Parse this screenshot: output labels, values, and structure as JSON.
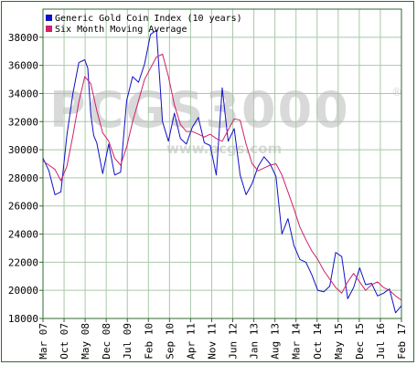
{
  "watermark": {
    "brand": "PCGS3000",
    "url": "www.pcgs.com",
    "registered": "®"
  },
  "colors": {
    "index_line": "#1010c8",
    "average_line": "#d0206a",
    "axis": "#2f6b2f",
    "grid": "#a8c8a8"
  },
  "chart_data": {
    "type": "line",
    "title": "",
    "xlabel": "",
    "ylabel": "",
    "ylim": [
      18000,
      40000
    ],
    "y_ticks": [
      18000,
      20000,
      22000,
      24000,
      26000,
      28000,
      30000,
      32000,
      34000,
      36000,
      38000
    ],
    "y_tick_labels": [
      "18000",
      "20000",
      "22000",
      "24000",
      "26000",
      "28000",
      "30000",
      "32000",
      "34000",
      "36000",
      "38000"
    ],
    "x_tick_labels": [
      "Mar 07",
      "Oct 07",
      "May 08",
      "Dec 08",
      "Jul 09",
      "Feb 10",
      "Sep 10",
      "Apr 11",
      "Nov 11",
      "Jun 12",
      "Jan 13",
      "Aug 13",
      "Mar 14",
      "Oct 14",
      "May 15",
      "Dec 15",
      "Jul 16",
      "Feb 17"
    ],
    "grid": true,
    "legend_position": "top-left",
    "series": [
      {
        "name": "Generic Gold Coin Index (10 years)",
        "color": "#1010c8",
        "x": [
          0,
          2,
          4,
          6,
          8,
          10,
          12,
          14,
          15,
          16,
          17,
          18,
          20,
          22,
          24,
          26,
          28,
          30,
          32,
          34,
          36,
          38,
          40,
          42,
          44,
          46,
          48,
          50,
          52,
          54,
          56,
          58,
          60,
          62,
          64,
          66,
          68,
          70,
          72,
          74,
          76,
          78,
          80,
          82,
          84,
          86,
          88,
          90,
          92,
          94,
          96,
          98,
          100,
          102,
          104,
          106,
          108,
          110,
          112,
          114,
          116,
          118,
          120
        ],
        "values": [
          29400,
          28500,
          26800,
          27000,
          31000,
          34000,
          36200,
          36400,
          35800,
          32500,
          31000,
          30500,
          28300,
          30400,
          28200,
          28400,
          33500,
          35200,
          34800,
          36100,
          38200,
          38500,
          32000,
          30600,
          32600,
          30800,
          30400,
          31600,
          32300,
          30500,
          30300,
          28200,
          34400,
          30600,
          31500,
          28200,
          26800,
          27600,
          28800,
          29500,
          29000,
          28100,
          24000,
          25100,
          23200,
          22200,
          22000,
          21100,
          20000,
          19900,
          20300,
          22700,
          22400,
          19400,
          20200,
          21600,
          20400,
          20500,
          19600,
          19800,
          20100,
          18400,
          18900
        ]
      },
      {
        "name": "Six Month Moving Average",
        "color": "#d0206a",
        "x": [
          0,
          2,
          4,
          6,
          8,
          10,
          12,
          14,
          16,
          18,
          20,
          22,
          24,
          26,
          28,
          30,
          32,
          34,
          36,
          38,
          40,
          42,
          44,
          46,
          48,
          50,
          52,
          54,
          56,
          58,
          60,
          62,
          64,
          66,
          68,
          70,
          72,
          74,
          76,
          78,
          80,
          82,
          84,
          86,
          88,
          90,
          92,
          94,
          96,
          98,
          100,
          102,
          104,
          106,
          108,
          110,
          112,
          114,
          116,
          118,
          120
        ],
        "values": [
          29200,
          28900,
          28600,
          27800,
          28800,
          31000,
          33400,
          35200,
          34700,
          32800,
          31200,
          30600,
          29400,
          28900,
          30200,
          32000,
          33500,
          35000,
          35800,
          36600,
          36800,
          35200,
          33200,
          31800,
          31300,
          31300,
          31100,
          30900,
          31100,
          30800,
          30600,
          31400,
          32200,
          32100,
          30400,
          29000,
          28500,
          28700,
          28900,
          29000,
          28200,
          27000,
          25800,
          24500,
          23600,
          22800,
          22200,
          21400,
          20800,
          20200,
          19800,
          20600,
          21200,
          20600,
          20000,
          20400,
          20600,
          20200,
          20000,
          19600,
          19300
        ]
      }
    ]
  }
}
